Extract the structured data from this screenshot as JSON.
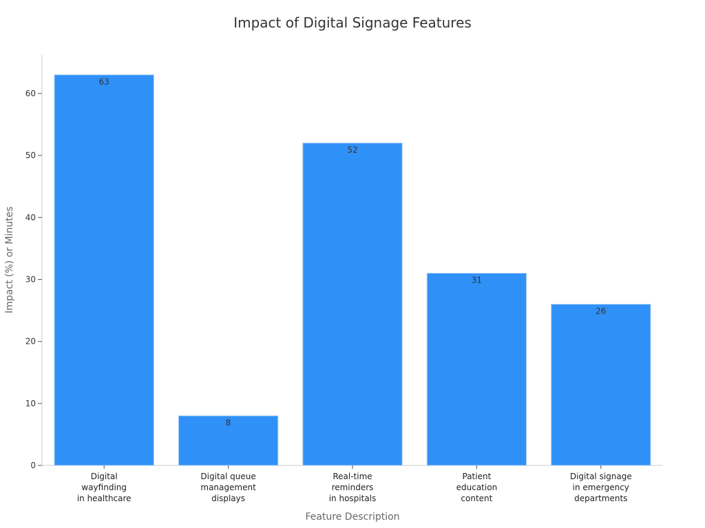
{
  "chart_data": {
    "type": "bar",
    "title": "Impact of Digital Signage Features",
    "xlabel": "Feature Description",
    "ylabel": "Impact (%) or Minutes",
    "categories": [
      [
        "Digital",
        "wayfinding",
        "in healthcare"
      ],
      [
        "Digital queue",
        "management",
        "displays"
      ],
      [
        "Real-time",
        "reminders",
        "in hospitals"
      ],
      [
        "Patient",
        "education",
        "content"
      ],
      [
        "Digital signage",
        "in emergency",
        "departments"
      ]
    ],
    "values": [
      63,
      8,
      52,
      31,
      26
    ],
    "yticks": [
      0,
      10,
      20,
      30,
      40,
      50,
      60
    ],
    "ylim": [
      0,
      66.2
    ],
    "bar_color": "#2f91f7",
    "grid": false,
    "legend": "none"
  }
}
